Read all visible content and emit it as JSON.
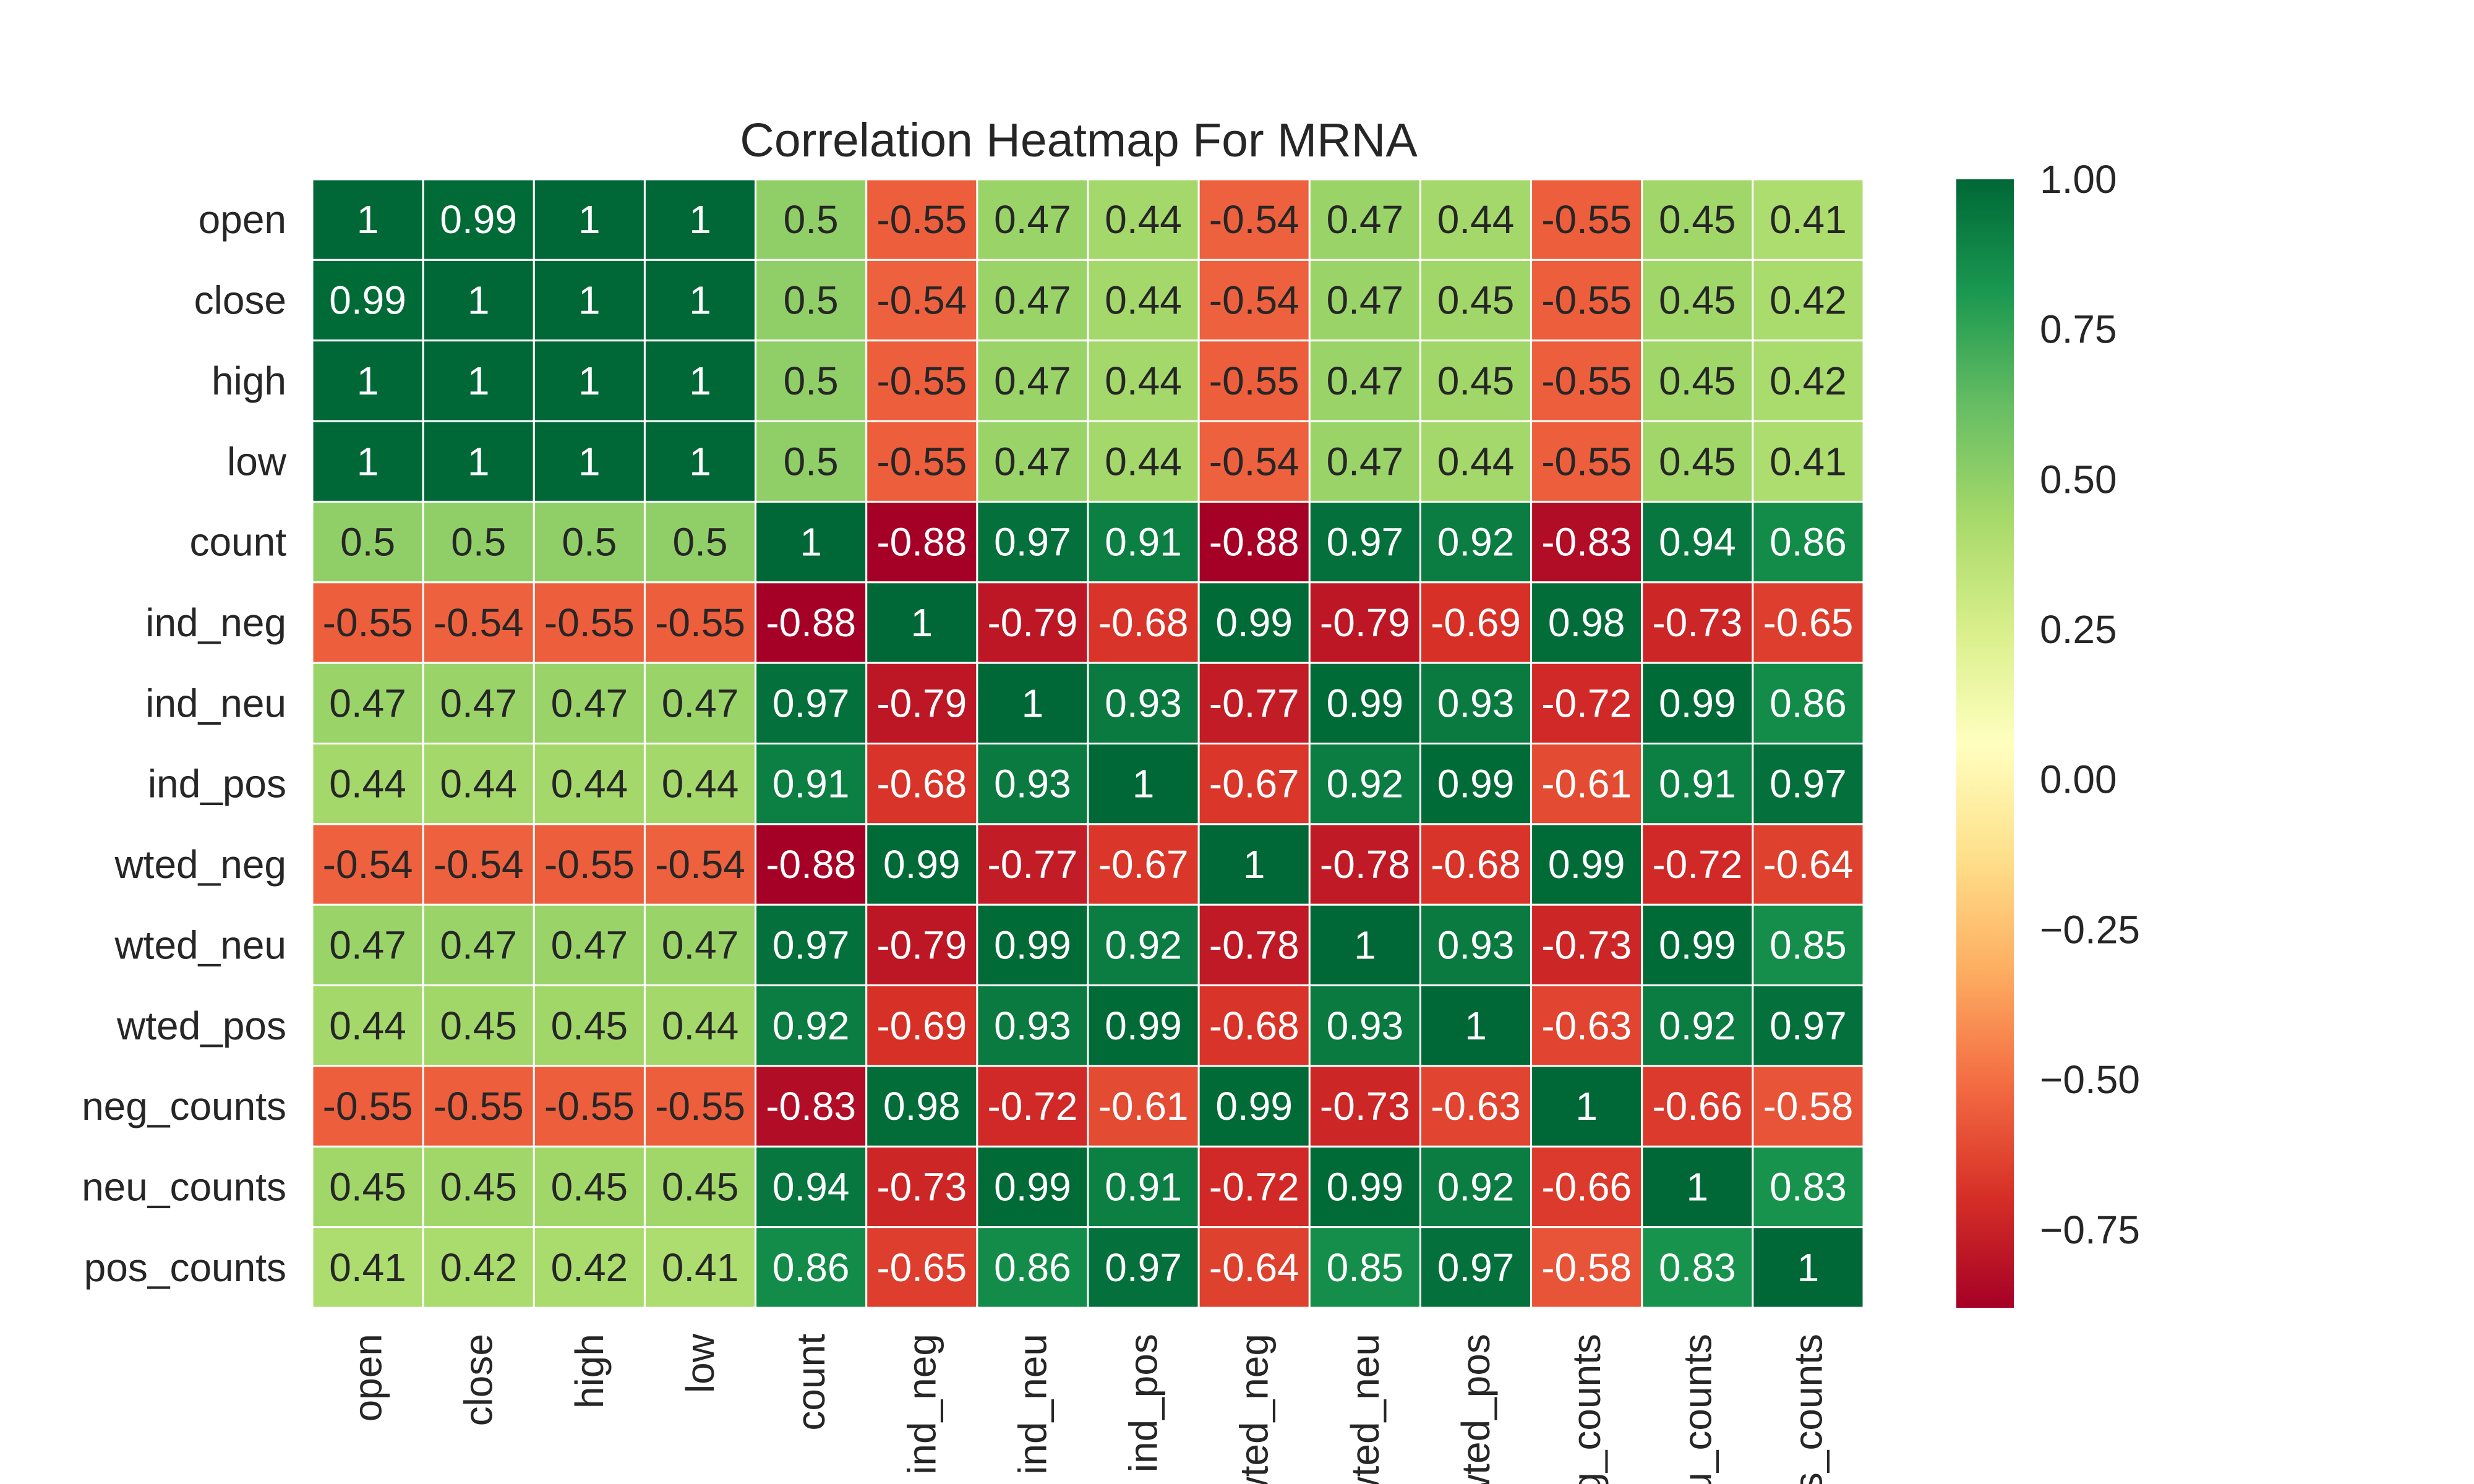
{
  "chart_data": {
    "type": "heatmap",
    "title": "Correlation Heatmap For MRNA",
    "rows": [
      "open",
      "close",
      "high",
      "low",
      "count",
      "ind_neg",
      "ind_neu",
      "ind_pos",
      "wted_neg",
      "wted_neu",
      "wted_pos",
      "neg_counts",
      "neu_counts",
      "pos_counts"
    ],
    "columns": [
      "open",
      "close",
      "high",
      "low",
      "count",
      "ind_neg",
      "ind_neu",
      "ind_pos",
      "wted_neg",
      "wted_neu",
      "wted_pos",
      "neg_counts",
      "neu_counts",
      "pos_counts"
    ],
    "values": [
      [
        1,
        0.99,
        1,
        1,
        0.5,
        -0.55,
        0.47,
        0.44,
        -0.54,
        0.47,
        0.44,
        -0.55,
        0.45,
        0.41
      ],
      [
        0.99,
        1,
        1,
        1,
        0.5,
        -0.54,
        0.47,
        0.44,
        -0.54,
        0.47,
        0.45,
        -0.55,
        0.45,
        0.42
      ],
      [
        1,
        1,
        1,
        1,
        0.5,
        -0.55,
        0.47,
        0.44,
        -0.55,
        0.47,
        0.45,
        -0.55,
        0.45,
        0.42
      ],
      [
        1,
        1,
        1,
        1,
        0.5,
        -0.55,
        0.47,
        0.44,
        -0.54,
        0.47,
        0.44,
        -0.55,
        0.45,
        0.41
      ],
      [
        0.5,
        0.5,
        0.5,
        0.5,
        1,
        -0.88,
        0.97,
        0.91,
        -0.88,
        0.97,
        0.92,
        -0.83,
        0.94,
        0.86
      ],
      [
        -0.55,
        -0.54,
        -0.55,
        -0.55,
        -0.88,
        1,
        -0.79,
        -0.68,
        0.99,
        -0.79,
        -0.69,
        0.98,
        -0.73,
        -0.65
      ],
      [
        0.47,
        0.47,
        0.47,
        0.47,
        0.97,
        -0.79,
        1,
        0.93,
        -0.77,
        0.99,
        0.93,
        -0.72,
        0.99,
        0.86
      ],
      [
        0.44,
        0.44,
        0.44,
        0.44,
        0.91,
        -0.68,
        0.93,
        1,
        -0.67,
        0.92,
        0.99,
        -0.61,
        0.91,
        0.97
      ],
      [
        -0.54,
        -0.54,
        -0.55,
        -0.54,
        -0.88,
        0.99,
        -0.77,
        -0.67,
        1,
        -0.78,
        -0.68,
        0.99,
        -0.72,
        -0.64
      ],
      [
        0.47,
        0.47,
        0.47,
        0.47,
        0.97,
        -0.79,
        0.99,
        0.92,
        -0.78,
        1,
        0.93,
        -0.73,
        0.99,
        0.85
      ],
      [
        0.44,
        0.45,
        0.45,
        0.44,
        0.92,
        -0.69,
        0.93,
        0.99,
        -0.68,
        0.93,
        1,
        -0.63,
        0.92,
        0.97
      ],
      [
        -0.55,
        -0.55,
        -0.55,
        -0.55,
        -0.83,
        0.98,
        -0.72,
        -0.61,
        0.99,
        -0.73,
        -0.63,
        1,
        -0.66,
        -0.58
      ],
      [
        0.45,
        0.45,
        0.45,
        0.45,
        0.94,
        -0.73,
        0.99,
        0.91,
        -0.72,
        0.99,
        0.92,
        -0.66,
        1,
        0.83
      ],
      [
        0.41,
        0.42,
        0.42,
        0.41,
        0.86,
        -0.65,
        0.86,
        0.97,
        -0.64,
        0.85,
        0.97,
        -0.58,
        0.83,
        1
      ]
    ],
    "value_range": [
      -0.88,
      1.0
    ],
    "colormap": "RdYlGn",
    "colorbar": {
      "ticks": [
        1.0,
        0.75,
        0.5,
        0.25,
        0.0,
        -0.25,
        -0.5,
        -0.75
      ],
      "tick_labels": [
        "1.00",
        "0.75",
        "0.50",
        "0.25",
        "0.00",
        "−0.25",
        "−0.50",
        "−0.75"
      ],
      "placement": "right"
    },
    "annotated": true,
    "grid": false
  }
}
